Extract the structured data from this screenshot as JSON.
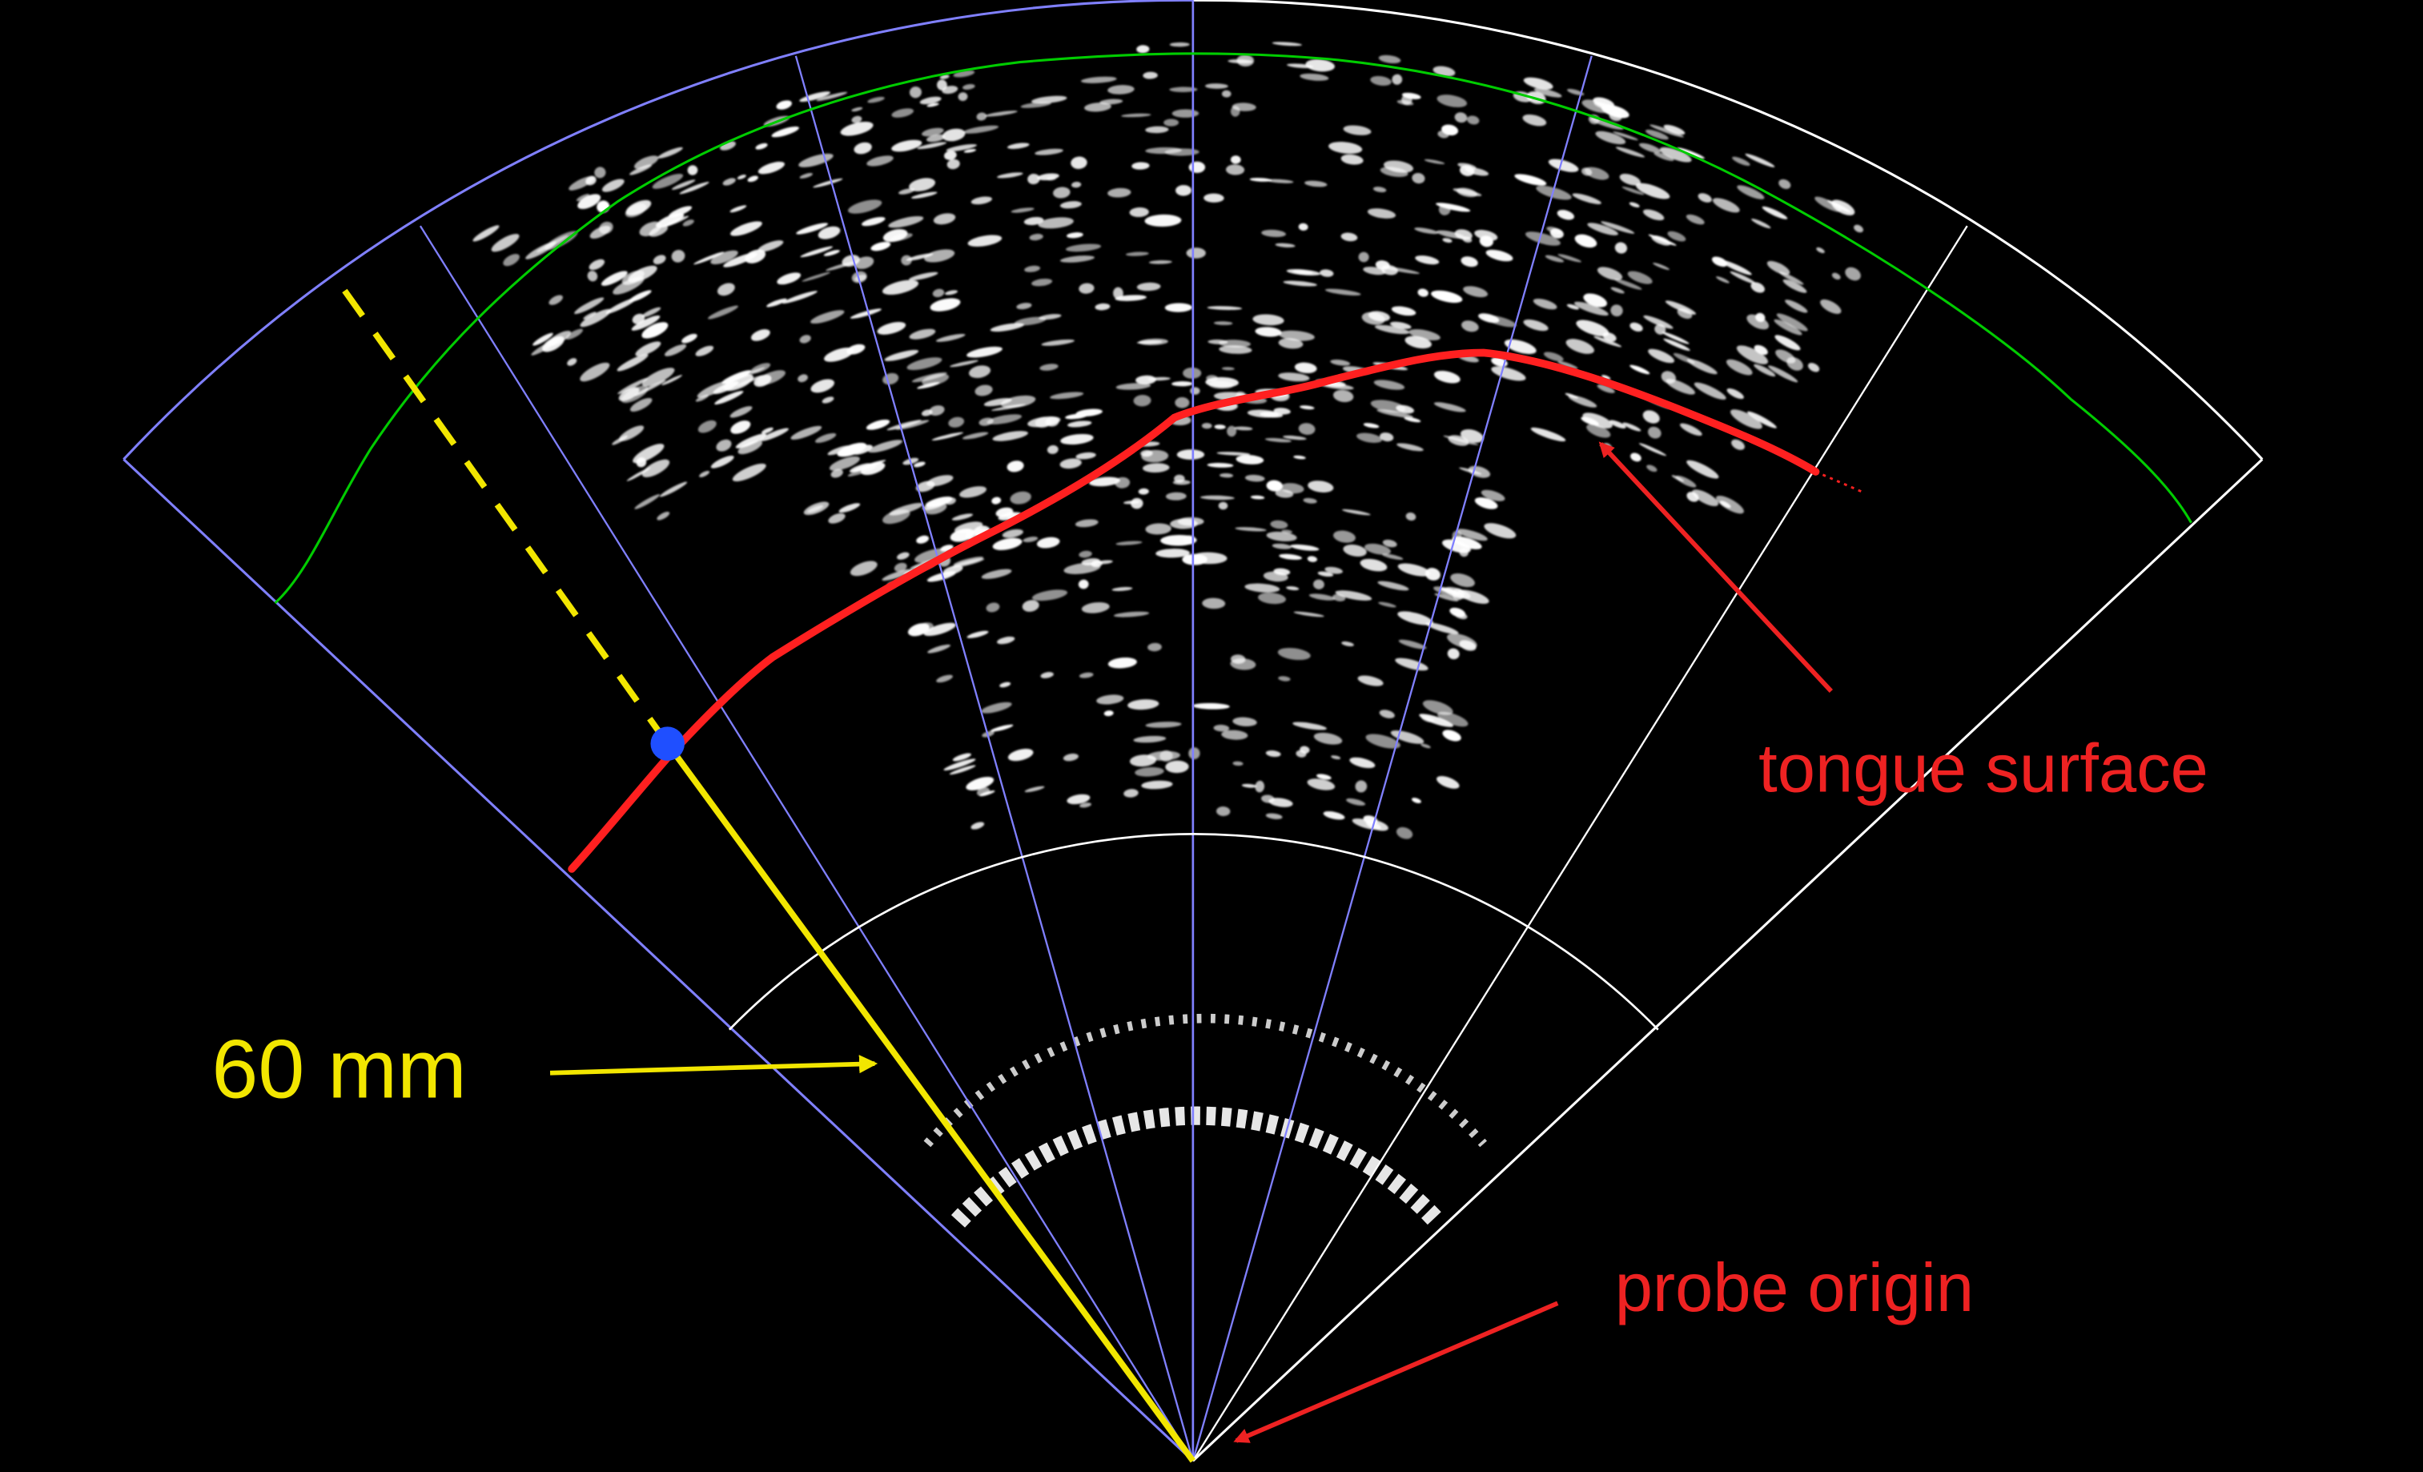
{
  "annotations": {
    "tongue_surface_label": "tongue surface",
    "probe_origin_label": "probe origin",
    "radius_label": "60 mm"
  },
  "colors": {
    "background": "#000000",
    "fan_outline_blue": "#8080ff",
    "fan_outline_white": "#ffffff",
    "green_contour": "#00cc00",
    "tongue_trace": "#ff2020",
    "annotation_red": "#ee2222",
    "annotation_yellow": "#f2e600",
    "marker_blue": "#1f4fff"
  },
  "icons": {
    "marker": "blue-dot-icon",
    "arrows": "arrow-icon"
  }
}
